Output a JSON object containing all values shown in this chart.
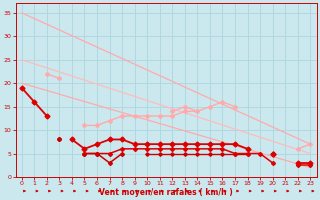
{
  "bg_color": "#cbe8ef",
  "grid_color": "#b0d8e0",
  "xlabel": "Vent moyen/en rafales ( km/h )",
  "xlabel_color": "#cc0000",
  "tick_color": "#cc0000",
  "xlim": [
    -0.5,
    23.5
  ],
  "ylim": [
    0,
    37
  ],
  "yticks": [
    0,
    5,
    10,
    15,
    20,
    25,
    30,
    35
  ],
  "xticks": [
    0,
    1,
    2,
    3,
    4,
    5,
    6,
    7,
    8,
    9,
    10,
    11,
    12,
    13,
    14,
    15,
    16,
    17,
    18,
    19,
    20,
    21,
    22,
    23
  ],
  "series": [
    {
      "x": [
        0,
        23
      ],
      "y": [
        35,
        7
      ],
      "color": "#ffaaaa",
      "lw": 0.9,
      "marker": null,
      "connect_gaps": true,
      "zorder": 2
    },
    {
      "x": [
        0,
        23
      ],
      "y": [
        25,
        5
      ],
      "color": "#ffbbbb",
      "lw": 0.9,
      "marker": null,
      "connect_gaps": true,
      "zorder": 2
    },
    {
      "x": [
        0,
        23
      ],
      "y": [
        20,
        2
      ],
      "color": "#ffaaaa",
      "lw": 0.9,
      "marker": null,
      "connect_gaps": true,
      "zorder": 2
    },
    {
      "x": [
        0,
        1,
        2,
        3,
        4,
        5,
        6,
        7,
        8,
        9,
        10,
        11,
        12,
        13,
        14,
        15,
        16,
        17,
        18,
        19,
        20,
        21,
        22,
        23
      ],
      "y": [
        null,
        null,
        null,
        null,
        null,
        null,
        null,
        null,
        null,
        null,
        null,
        null,
        14,
        15,
        14,
        15,
        16,
        15,
        null,
        null,
        null,
        null,
        6,
        7
      ],
      "color": "#ffaaaa",
      "lw": 1.0,
      "marker": "D",
      "markersize": 2,
      "connect_gaps": false,
      "zorder": 3
    },
    {
      "x": [
        0,
        1,
        2,
        3,
        4,
        5,
        6,
        7,
        8,
        9,
        10,
        11,
        12,
        13,
        14,
        15,
        16,
        17,
        18,
        19,
        20,
        21,
        22,
        23
      ],
      "y": [
        null,
        null,
        22,
        21,
        null,
        null,
        null,
        null,
        null,
        null,
        null,
        null,
        null,
        null,
        null,
        null,
        null,
        null,
        null,
        null,
        null,
        null,
        null,
        null
      ],
      "color": "#ffaaaa",
      "lw": 1.0,
      "marker": "D",
      "markersize": 2,
      "connect_gaps": false,
      "zorder": 3
    },
    {
      "x": [
        0,
        1,
        2,
        3,
        4,
        5,
        6,
        7,
        8,
        9,
        10,
        11,
        12,
        13,
        14,
        15,
        16,
        17,
        18,
        19,
        20,
        21,
        22,
        23
      ],
      "y": [
        null,
        null,
        null,
        null,
        null,
        11,
        11,
        12,
        13,
        13,
        13,
        13,
        13,
        14,
        14,
        null,
        null,
        null,
        null,
        null,
        null,
        null,
        null,
        null
      ],
      "color": "#ffaaaa",
      "lw": 1.0,
      "marker": "D",
      "markersize": 2,
      "connect_gaps": false,
      "zorder": 3
    },
    {
      "x": [
        0,
        1,
        2,
        3,
        4,
        5,
        6,
        7,
        8,
        9,
        10,
        11,
        12,
        13,
        14,
        15,
        16,
        17,
        18,
        19,
        20,
        21,
        22,
        23
      ],
      "y": [
        19,
        16,
        13,
        null,
        8,
        6,
        7,
        8,
        8,
        7,
        7,
        7,
        7,
        7,
        7,
        7,
        7,
        7,
        6,
        null,
        5,
        null,
        3,
        3
      ],
      "color": "#dd0000",
      "lw": 1.3,
      "marker": "D",
      "markersize": 2.5,
      "connect_gaps": false,
      "zorder": 4
    },
    {
      "x": [
        0,
        1,
        2,
        3,
        4,
        5,
        6,
        7,
        8,
        9,
        10,
        11,
        12,
        13,
        14,
        15,
        16,
        17,
        18,
        19,
        20,
        21,
        22,
        23
      ],
      "y": [
        null,
        null,
        null,
        null,
        null,
        5,
        5,
        5,
        6,
        6,
        6,
        6,
        6,
        6,
        6,
        6,
        6,
        5,
        5,
        5,
        3,
        null,
        2.5,
        2.5
      ],
      "color": "#dd0000",
      "lw": 1.1,
      "marker": "D",
      "markersize": 2,
      "connect_gaps": false,
      "zorder": 4
    },
    {
      "x": [
        0,
        1,
        2,
        3,
        4,
        5,
        6,
        7,
        8,
        9,
        10,
        11,
        12,
        13,
        14,
        15,
        16,
        17,
        18,
        19,
        20,
        21,
        22,
        23
      ],
      "y": [
        null,
        null,
        null,
        8,
        null,
        5,
        5,
        3,
        5,
        null,
        null,
        null,
        null,
        null,
        null,
        null,
        null,
        null,
        null,
        null,
        null,
        null,
        null,
        null
      ],
      "color": "#cc0000",
      "lw": 1.1,
      "marker": "D",
      "markersize": 2,
      "connect_gaps": false,
      "zorder": 4
    },
    {
      "x": [
        0,
        1,
        2,
        3,
        4,
        5,
        6,
        7,
        8,
        9,
        10,
        11,
        12,
        13,
        14,
        15,
        16,
        17,
        18,
        19,
        20,
        21,
        22,
        23
      ],
      "y": [
        null,
        null,
        null,
        null,
        null,
        null,
        null,
        null,
        null,
        null,
        5,
        5,
        5,
        5,
        5,
        5,
        5,
        5,
        5,
        null,
        null,
        null,
        null,
        null
      ],
      "color": "#cc0000",
      "lw": 1.0,
      "marker": "D",
      "markersize": 1.8,
      "connect_gaps": false,
      "zorder": 3
    }
  ],
  "arrow_color": "#cc0000",
  "figsize": [
    3.2,
    2.0
  ],
  "dpi": 100
}
